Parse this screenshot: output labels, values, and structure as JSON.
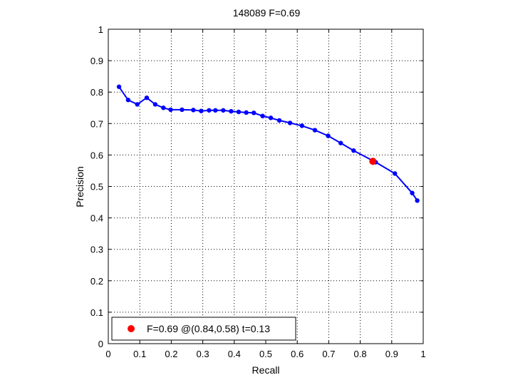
{
  "chart_data": {
    "type": "line",
    "title": "148089 F=0.69",
    "xlabel": "Recall",
    "ylabel": "Precision",
    "xlim": [
      0,
      1
    ],
    "ylim": [
      0,
      1
    ],
    "xticks": [
      "0",
      "0.1",
      "0.2",
      "0.3",
      "0.4",
      "0.5",
      "0.6",
      "0.7",
      "0.8",
      "0.9",
      "1"
    ],
    "yticks": [
      "0",
      "0.1",
      "0.2",
      "0.3",
      "0.4",
      "0.5",
      "0.6",
      "0.7",
      "0.8",
      "0.9",
      "1"
    ],
    "grid": true,
    "grid_style": "dotted",
    "series": [
      {
        "color": "#0000ff",
        "marker": "dot",
        "x": [
          0.034,
          0.063,
          0.092,
          0.122,
          0.149,
          0.175,
          0.198,
          0.234,
          0.27,
          0.295,
          0.32,
          0.34,
          0.365,
          0.39,
          0.414,
          0.438,
          0.462,
          0.49,
          0.516,
          0.543,
          0.577,
          0.615,
          0.656,
          0.698,
          0.738,
          0.779,
          0.849,
          0.91,
          0.965,
          0.981
        ],
        "y": [
          0.817,
          0.775,
          0.761,
          0.782,
          0.761,
          0.75,
          0.744,
          0.744,
          0.743,
          0.74,
          0.742,
          0.742,
          0.742,
          0.739,
          0.737,
          0.735,
          0.734,
          0.724,
          0.718,
          0.71,
          0.702,
          0.693,
          0.679,
          0.661,
          0.638,
          0.614,
          0.577,
          0.541,
          0.479,
          0.455
        ]
      }
    ],
    "highlight": {
      "x": 0.84,
      "y": 0.58,
      "color": "#ff0000"
    },
    "legend": {
      "position": "bottom-left",
      "entries": [
        {
          "label": "F=0.69 @(0.84,0.58) t=0.13",
          "color": "#ff0000"
        }
      ]
    }
  }
}
